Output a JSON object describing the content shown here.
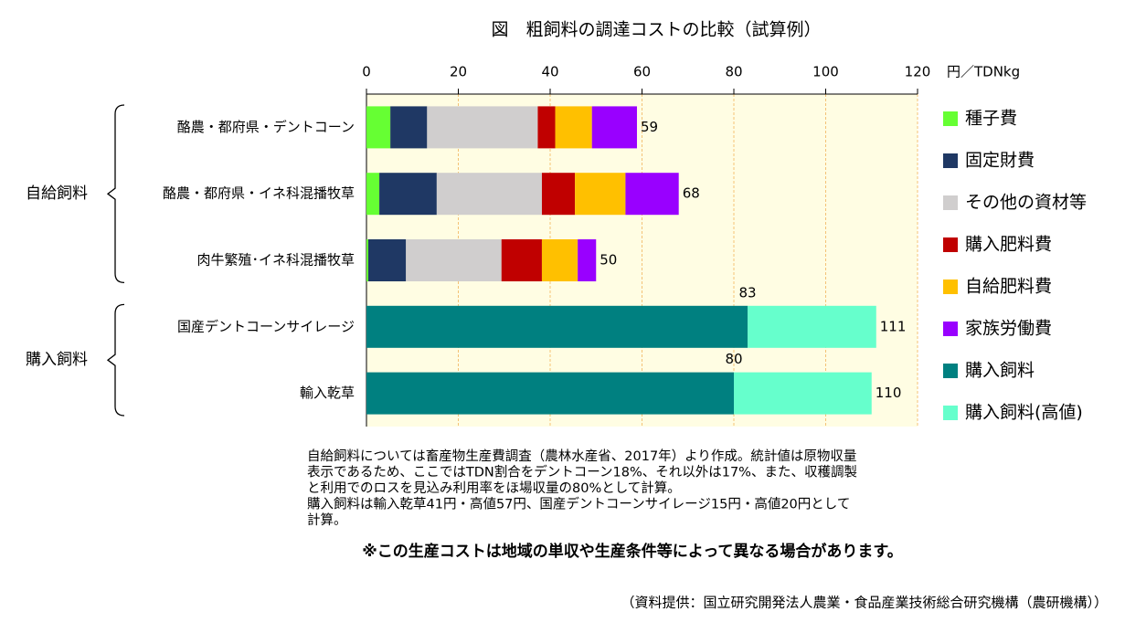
{
  "chart_data": {
    "type": "stacked-barh",
    "title": "図　粗飼料の調達コストの比較（試算例）",
    "x_unit": "円／TDNkg",
    "categories": [
      "酪農・都府県・デントコーン",
      "酪農・都府県・イネ科混播牧草",
      "肉牛繁殖･イネ科混播牧草",
      "国産デントコーンサイレージ",
      "輸入乾草"
    ],
    "groups": [
      {
        "label": "自給飼料",
        "rows": [
          0,
          2
        ]
      },
      {
        "label": "購入飼料",
        "rows": [
          3,
          4
        ]
      }
    ],
    "series": [
      {
        "name": "種子費",
        "color": "#66ff33",
        "values": [
          5.2,
          2.8,
          0.4,
          null,
          null
        ]
      },
      {
        "name": "固定財費",
        "color": "#1f3864",
        "values": [
          8.0,
          12.5,
          8.2,
          null,
          null
        ]
      },
      {
        "name": "その他の資材等",
        "color": "#d0cece",
        "values": [
          24.1,
          22.9,
          20.8,
          null,
          null
        ]
      },
      {
        "name": "購入肥料費",
        "color": "#c00000",
        "values": [
          3.8,
          7.2,
          8.8,
          null,
          null
        ]
      },
      {
        "name": "自給肥料費",
        "color": "#ffc000",
        "values": [
          8.0,
          11.0,
          7.8,
          null,
          null
        ]
      },
      {
        "name": "家族労働費",
        "color": "#9900ff",
        "values": [
          9.8,
          11.6,
          4.0,
          null,
          null
        ]
      },
      {
        "name": "購入飼料",
        "color": "#008080",
        "values": [
          null,
          null,
          null,
          83,
          80
        ],
        "show_values": true
      },
      {
        "name": "購入飼料(高値)",
        "color": "#66ffcc",
        "values": [
          null,
          null,
          null,
          28,
          30
        ]
      }
    ],
    "totals": [
      59,
      68,
      50,
      111,
      110
    ],
    "xlim": [
      0,
      120
    ],
    "xticks": [
      0,
      20,
      40,
      60,
      80,
      100,
      120
    ],
    "grid": true,
    "plot_background": "#fffde3",
    "notes": [
      "自給飼料については畜産物生産費調査（農林水産省、2017年）より作成。統計値は原物収量",
      "表示であるため、ここではTDN割合をデントコーン18%、それ以外は17%、また、収穫調製",
      "と利用でのロスを見込み利用率をほ場収量の80%として計算。",
      "購入飼料は輸入乾草41円・高値57円、国産デントコーンサイレージ15円・高値20円として",
      "計算。"
    ],
    "caution": "※この生産コストは地域の単収や生産条件等によって異なる場合があります。",
    "source": "（資料提供：国立研究開発法人農業・食品産業技術総合研究機構（農研機構））"
  }
}
